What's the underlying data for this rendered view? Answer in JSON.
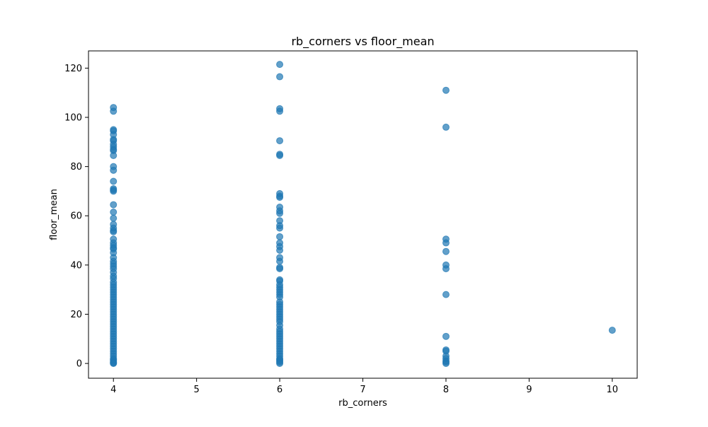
{
  "chart_data": {
    "type": "scatter",
    "title": "rb_corners vs floor_mean",
    "xlabel": "rb_corners",
    "ylabel": "floor_mean",
    "xlim": [
      3.7,
      10.3
    ],
    "ylim": [
      -6,
      127
    ],
    "x_ticks": [
      4,
      5,
      6,
      7,
      8,
      9,
      10
    ],
    "y_ticks": [
      0,
      20,
      40,
      60,
      80,
      100,
      120
    ],
    "grid": false,
    "legend": "none",
    "marker_color": "#1f77b4",
    "marker_alpha": 0.7,
    "series": [
      {
        "name": "rb_corners=4",
        "x": 4,
        "y": [
          104,
          102.5,
          95,
          94.5,
          93,
          91,
          90.5,
          89,
          88,
          87,
          86.5,
          84.5,
          80,
          78.5,
          74,
          71,
          70.5,
          70,
          64.5,
          61.5,
          59,
          56.5,
          55,
          54,
          53.5,
          50.5,
          49,
          48,
          47,
          46.5,
          45,
          43,
          41.5,
          40.5,
          39.5,
          38.5,
          37,
          35.5,
          34.5,
          33,
          32,
          31,
          30,
          29,
          28,
          27,
          26,
          25,
          24,
          23,
          22,
          21,
          20,
          19,
          18,
          17,
          16,
          15,
          14,
          13,
          12,
          11,
          10,
          9,
          8,
          7,
          6,
          5,
          4,
          3,
          2,
          1.5,
          1,
          0.5,
          0.2,
          0
        ]
      },
      {
        "name": "rb_corners=6",
        "x": 6,
        "y": [
          121.5,
          116.5,
          103.5,
          102.5,
          90.5,
          85,
          84.5,
          69,
          68,
          67.5,
          63.5,
          62,
          61,
          58,
          56,
          55,
          51.5,
          49,
          47.5,
          46,
          43,
          41.5,
          39,
          38.5,
          34,
          33.5,
          32,
          31,
          30,
          29,
          28,
          27,
          25,
          24,
          23,
          22,
          21,
          20,
          19,
          18,
          17,
          15.5,
          14,
          13,
          12,
          11,
          10,
          9,
          8,
          7,
          6,
          5,
          4,
          3,
          2,
          1.5,
          1,
          0.5,
          0
        ]
      },
      {
        "name": "rb_corners=8",
        "x": 8,
        "y": [
          111,
          96,
          50.5,
          49,
          45.5,
          40,
          38.5,
          28,
          11,
          5.5,
          5,
          3,
          2,
          1,
          0.5,
          0
        ]
      },
      {
        "name": "rb_corners=10",
        "x": 10,
        "y": [
          13.5
        ]
      }
    ]
  }
}
